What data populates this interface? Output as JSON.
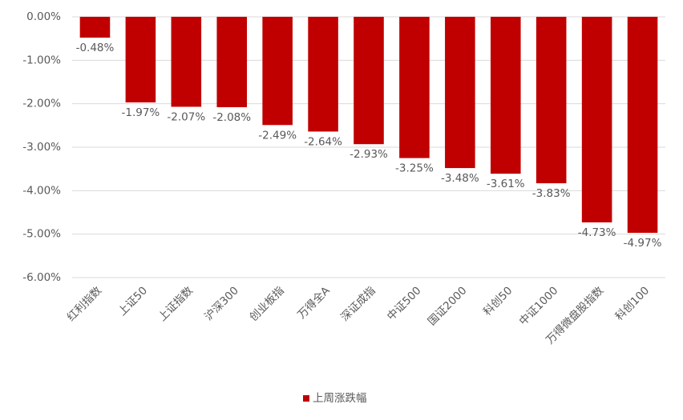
{
  "chart_data": {
    "type": "bar",
    "categories": [
      "红利指数",
      "上证50",
      "上证指数",
      "沪深300",
      "创业板指",
      "万得全A",
      "深证成指",
      "中证500",
      "国证2000",
      "科创50",
      "中证1000",
      "万得微盘股指数",
      "科创100"
    ],
    "series": [
      {
        "name": "上周涨跌幅",
        "color": "#c00000",
        "values": [
          -0.48,
          -1.97,
          -2.07,
          -2.08,
          -2.49,
          -2.64,
          -2.93,
          -3.25,
          -3.48,
          -3.61,
          -3.83,
          -4.73,
          -4.97
        ],
        "value_labels": [
          "-0.48%",
          "-1.97%",
          "-2.07%",
          "-2.08%",
          "-2.49%",
          "-2.64%",
          "-2.93%",
          "-3.25%",
          "-3.48%",
          "-3.61%",
          "-3.83%",
          "-4.73%",
          "-4.97%"
        ]
      }
    ],
    "ylim": [
      -6,
      0
    ],
    "yticks": [
      {
        "value": 0,
        "label": "0.00%"
      },
      {
        "value": -1,
        "label": "-1.00%"
      },
      {
        "value": -2,
        "label": "-2.00%"
      },
      {
        "value": -3,
        "label": "-3.00%"
      },
      {
        "value": -4,
        "label": "-4.00%"
      },
      {
        "value": -5,
        "label": "-5.00%"
      },
      {
        "value": -6,
        "label": "-6.00%"
      }
    ],
    "grid": true,
    "legend": "bottom"
  }
}
